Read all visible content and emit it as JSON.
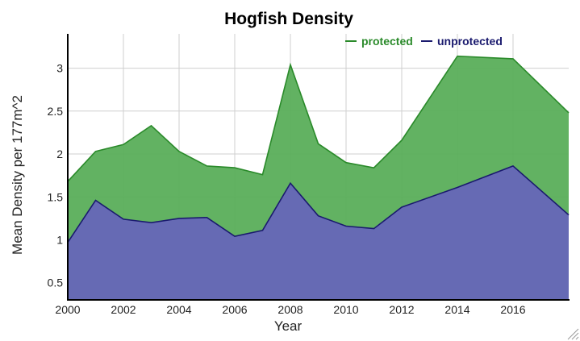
{
  "chart_data": {
    "type": "area",
    "title": "Hogfish Density",
    "xlabel": "Year",
    "ylabel": "Mean Density per 177m^2",
    "xlim": [
      2000,
      2018
    ],
    "ylim": [
      0.3,
      3.4
    ],
    "x_ticks": [
      2000,
      2002,
      2004,
      2006,
      2008,
      2010,
      2012,
      2014,
      2016
    ],
    "y_ticks": [
      0.5,
      1,
      1.5,
      2,
      2.5,
      3
    ],
    "grid": true,
    "legend_position": "top-right",
    "series": [
      {
        "name": "protected",
        "color": "#2a8a2a",
        "fill": "#5aae5a",
        "x": [
          2000,
          2001,
          2002,
          2003,
          2004,
          2005,
          2006,
          2007,
          2008,
          2009,
          2010,
          2011,
          2012,
          2014,
          2016,
          2018
        ],
        "values": [
          1.68,
          2.03,
          2.11,
          2.33,
          2.03,
          1.86,
          1.84,
          1.76,
          3.04,
          2.12,
          1.9,
          1.84,
          2.16,
          3.14,
          3.11,
          2.48
        ]
      },
      {
        "name": "unprotected",
        "color": "#1a1a6e",
        "fill": "#6666b8",
        "x": [
          2000,
          2001,
          2002,
          2003,
          2004,
          2005,
          2006,
          2007,
          2008,
          2009,
          2010,
          2011,
          2012,
          2014,
          2016,
          2018
        ],
        "values": [
          0.97,
          1.46,
          1.24,
          1.2,
          1.25,
          1.26,
          1.04,
          1.11,
          1.66,
          1.28,
          1.16,
          1.13,
          1.38,
          1.61,
          1.86,
          1.29
        ]
      }
    ]
  }
}
